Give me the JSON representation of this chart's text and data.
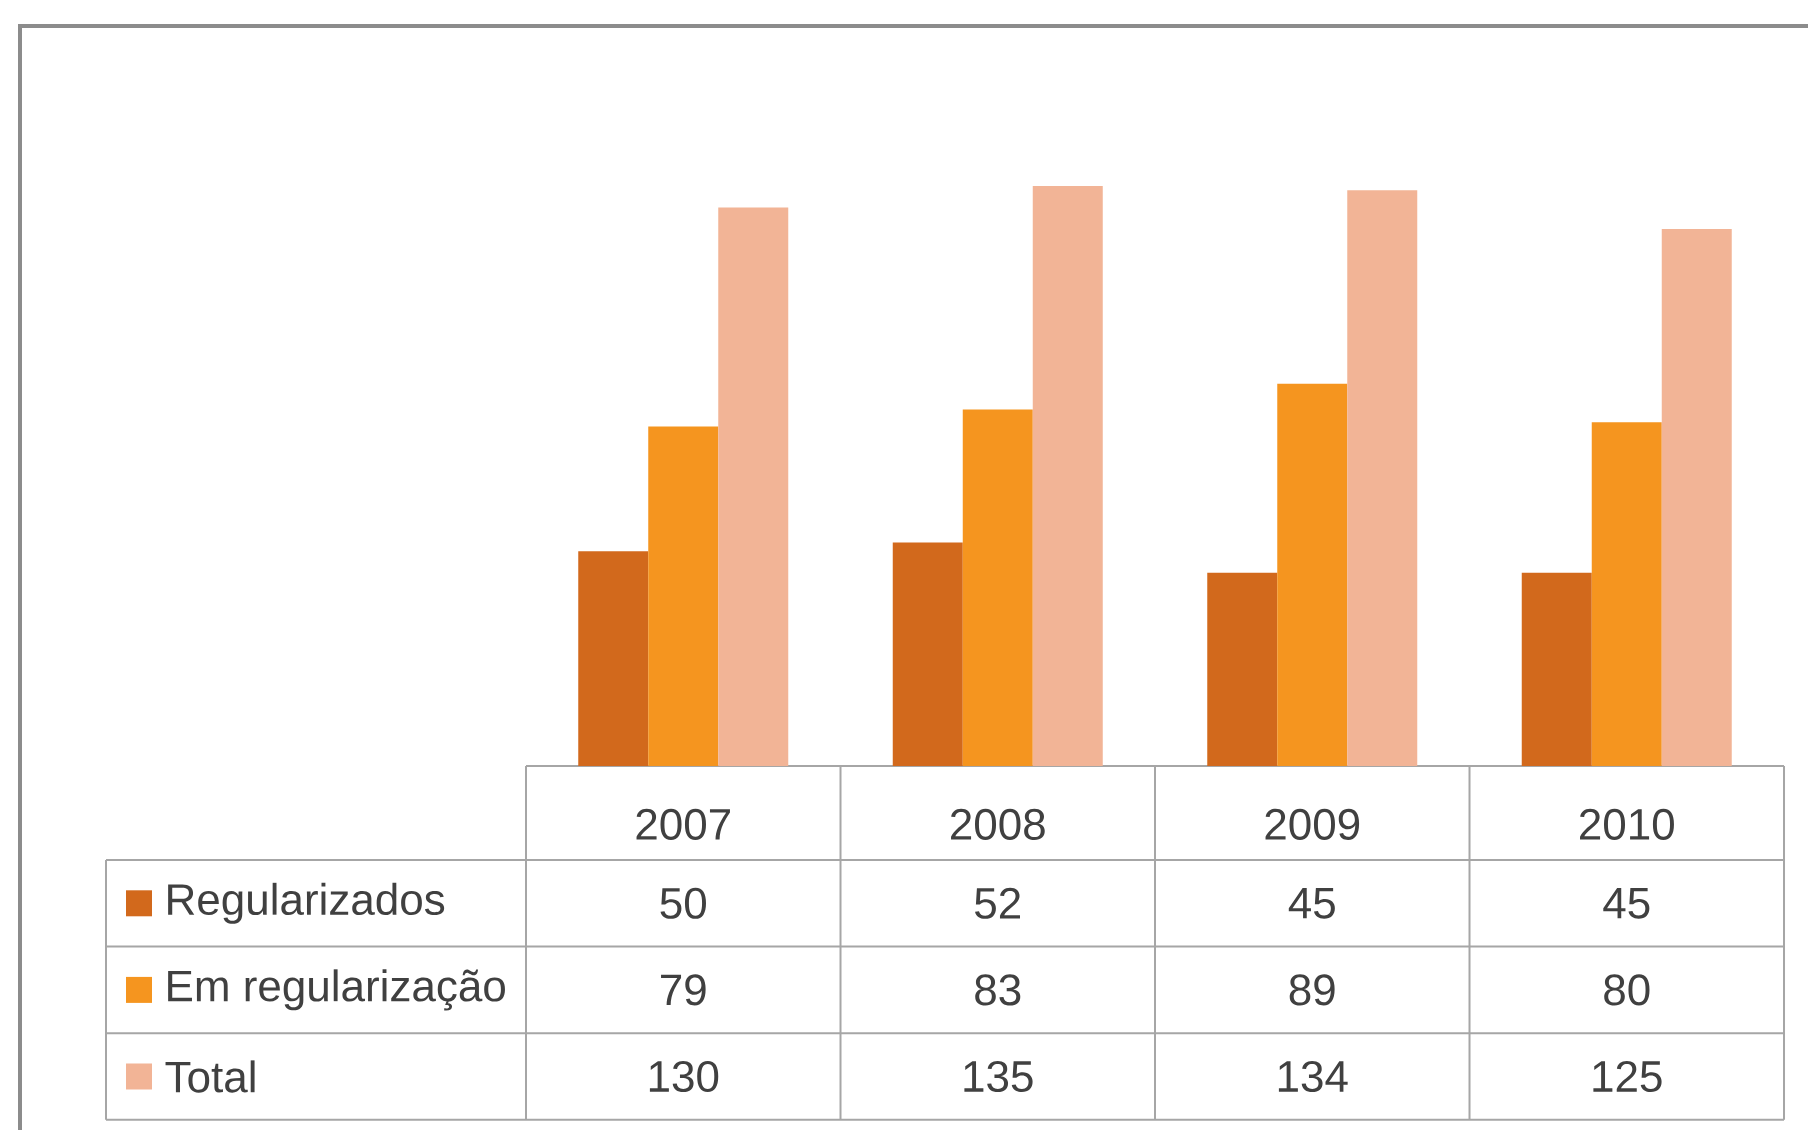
{
  "chart_data": {
    "type": "bar",
    "categories": [
      "2007",
      "2008",
      "2009",
      "2010"
    ],
    "series": [
      {
        "name": "Regularizados",
        "color": "#d2691c",
        "values": [
          50,
          52,
          45,
          45
        ]
      },
      {
        "name": "Em regularização",
        "color": "#f5951f",
        "values": [
          79,
          83,
          89,
          80
        ]
      },
      {
        "name": "Total",
        "color": "#f2b496",
        "values": [
          130,
          135,
          134,
          125
        ]
      }
    ],
    "data_labels": true,
    "legend": "bottom left"
  }
}
